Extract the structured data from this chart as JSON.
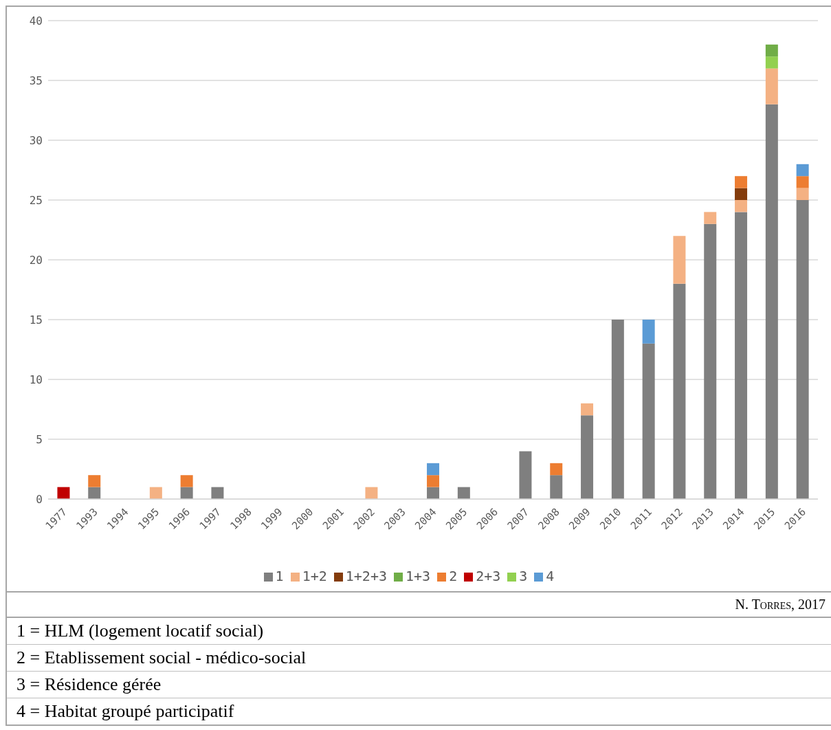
{
  "chart_data": {
    "type": "bar",
    "stacked": true,
    "categories": [
      "1977",
      "1993",
      "1994",
      "1995",
      "1996",
      "1997",
      "1998",
      "1999",
      "2000",
      "2001",
      "2002",
      "2003",
      "2004",
      "2005",
      "2006",
      "2007",
      "2008",
      "2009",
      "2010",
      "2011",
      "2012",
      "2013",
      "2014",
      "2015",
      "2016"
    ],
    "series": [
      {
        "name": "1",
        "color": "#7f7f7f",
        "values": [
          0,
          1,
          0,
          0,
          1,
          1,
          0,
          0,
          0,
          0,
          0,
          0,
          1,
          1,
          0,
          4,
          2,
          7,
          15,
          13,
          18,
          23,
          24,
          33,
          25
        ]
      },
      {
        "name": "1+2",
        "color": "#f4b183",
        "values": [
          0,
          0,
          0,
          1,
          0,
          0,
          0,
          0,
          0,
          0,
          1,
          0,
          0,
          0,
          0,
          0,
          0,
          1,
          0,
          0,
          4,
          1,
          1,
          3,
          1
        ]
      },
      {
        "name": "1+2+3",
        "color": "#843c0c",
        "values": [
          0,
          0,
          0,
          0,
          0,
          0,
          0,
          0,
          0,
          0,
          0,
          0,
          0,
          0,
          0,
          0,
          0,
          0,
          0,
          0,
          0,
          0,
          1,
          0,
          0
        ]
      },
      {
        "name": "2",
        "color": "#ed7d31",
        "values": [
          0,
          1,
          0,
          0,
          1,
          0,
          0,
          0,
          0,
          0,
          0,
          0,
          1,
          0,
          0,
          0,
          1,
          0,
          0,
          0,
          0,
          0,
          1,
          0,
          1
        ]
      },
      {
        "name": "2+3",
        "color": "#c00000",
        "values": [
          1,
          0,
          0,
          0,
          0,
          0,
          0,
          0,
          0,
          0,
          0,
          0,
          0,
          0,
          0,
          0,
          0,
          0,
          0,
          0,
          0,
          0,
          0,
          0,
          0
        ]
      },
      {
        "name": "3",
        "color": "#92d050",
        "values": [
          0,
          0,
          0,
          0,
          0,
          0,
          0,
          0,
          0,
          0,
          0,
          0,
          0,
          0,
          0,
          0,
          0,
          0,
          0,
          0,
          0,
          0,
          0,
          1,
          0
        ]
      },
      {
        "name": "4",
        "color": "#5b9bd5",
        "values": [
          0,
          0,
          0,
          0,
          0,
          0,
          0,
          0,
          0,
          0,
          0,
          0,
          1,
          0,
          0,
          0,
          0,
          0,
          0,
          2,
          0,
          0,
          0,
          0,
          1
        ]
      },
      {
        "name": "1+3",
        "color": "#70ad47",
        "values": [
          0,
          0,
          0,
          0,
          0,
          0,
          0,
          0,
          0,
          0,
          0,
          0,
          0,
          0,
          0,
          0,
          0,
          0,
          0,
          0,
          0,
          0,
          0,
          1,
          0
        ]
      }
    ],
    "ylim": [
      0,
      40
    ],
    "yticks": [
      0,
      5,
      10,
      15,
      20,
      25,
      30,
      35,
      40
    ],
    "grid": "y",
    "legend": "bottom",
    "annotations": [
      "N. Torres, 2017",
      "1 = HLM (logement locatif social)",
      "2 = Etablissement social - médico-social",
      "3 = Résidence gérée",
      "4 = Habitat groupé participatif"
    ]
  }
}
